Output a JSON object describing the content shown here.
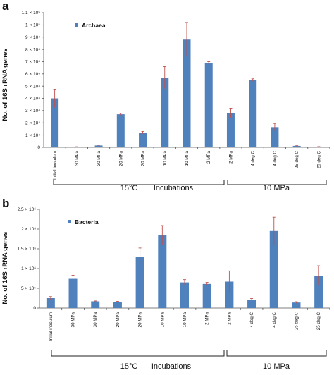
{
  "chart_data": [
    {
      "type": "bar",
      "panel": "a",
      "ylabel": "No. of 16S rRNA genes",
      "ylim": [
        0,
        110000
      ],
      "yticks": [
        "0",
        "1 × 10⁴",
        "2 × 10⁴",
        "3 × 10⁴",
        "4 × 10⁴",
        "5 × 10⁴",
        "6 × 10⁴",
        "7 × 10⁴",
        "8 × 10⁴",
        "9 × 10⁴",
        "1 × 10⁵",
        "1.1 × 10⁵"
      ],
      "ytick_values": [
        0,
        10000,
        20000,
        30000,
        40000,
        50000,
        60000,
        70000,
        80000,
        90000,
        100000,
        110000
      ],
      "legend": "Archaea",
      "bar_color": "#4f81bd",
      "error_color": "#c0504d",
      "categories": [
        "Initial inoculum",
        "30 MPa",
        "30 MPa",
        "20 MPa",
        "20 MPa",
        "10 MPa",
        "10 MPa",
        "2 MPa",
        "2 MPa",
        "4 deg C",
        "4 deg C",
        "25 deg C",
        "25 deg C"
      ],
      "values": [
        40000,
        300,
        1500,
        27000,
        12000,
        57000,
        88000,
        69000,
        28000,
        55000,
        16500,
        1200,
        400
      ],
      "errors": [
        7500,
        200,
        300,
        800,
        1000,
        9000,
        14000,
        1000,
        4000,
        1000,
        3000,
        400,
        200
      ],
      "groups": [
        {
          "label": "15°C",
          "sublabel": "Incubations"
        },
        {
          "label": "10 MPa"
        }
      ]
    },
    {
      "type": "bar",
      "panel": "b",
      "ylabel": "No. of 16S rRNA genes",
      "ylim": [
        0,
        2500000
      ],
      "yticks": [
        "0",
        "5 × 10⁵",
        "1 × 10⁶",
        "1.5 × 10⁶",
        "2 × 10⁶",
        "2.5 × 10⁶"
      ],
      "ytick_values": [
        0,
        500000,
        1000000,
        1500000,
        2000000,
        2500000
      ],
      "legend": "Bacteria",
      "bar_color": "#4f81bd",
      "error_color": "#c0504d",
      "categories": [
        "Initial inoculum",
        "30 MPa",
        "30 MPa",
        "20 MPa",
        "20 MPa",
        "10 MPa",
        "10 MPa",
        "2 MPa",
        "2 MPa",
        "4 deg C",
        "4 deg C",
        "25 deg C",
        "25 deg C"
      ],
      "values": [
        250000,
        740000,
        170000,
        150000,
        1300000,
        1840000,
        650000,
        610000,
        670000,
        210000,
        1950000,
        140000,
        820000
      ],
      "errors": [
        40000,
        90000,
        10000,
        20000,
        220000,
        250000,
        70000,
        40000,
        270000,
        30000,
        350000,
        20000,
        250000
      ],
      "groups": [
        {
          "label": "15°C",
          "sublabel": "Incubations"
        },
        {
          "label": "10 MPa"
        }
      ]
    }
  ]
}
